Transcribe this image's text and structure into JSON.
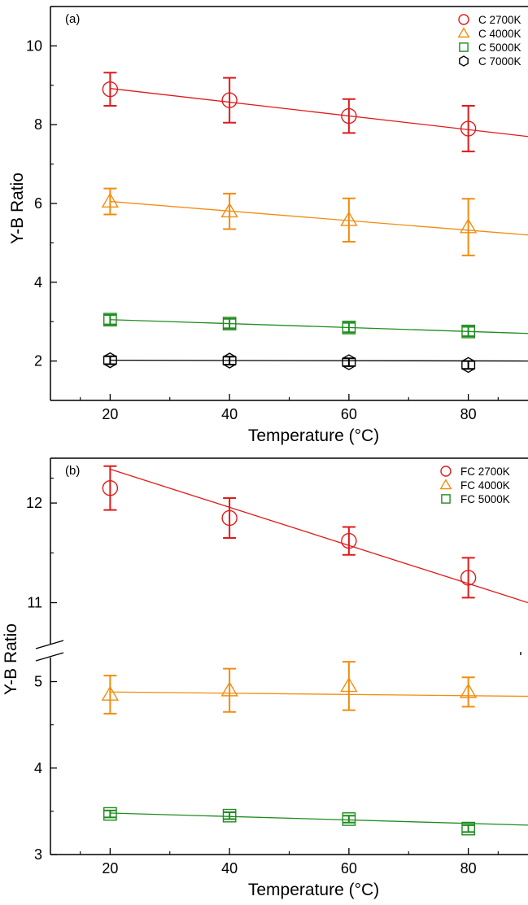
{
  "chart_data": [
    {
      "type": "scatter",
      "panel_label": "(a)",
      "xlabel": "Temperature (°C)",
      "ylabel": "Y-B Ratio",
      "xlim": [
        10,
        90
      ],
      "ylim": [
        1,
        11
      ],
      "xticks": [
        20,
        40,
        60,
        80
      ],
      "yticks": [
        2,
        4,
        6,
        8,
        10
      ],
      "grid": false,
      "legend_position": "top-right",
      "series": [
        {
          "name": "C 7000K",
          "marker": "hexagon",
          "color": "#000000",
          "x": [
            20,
            40,
            60,
            80
          ],
          "y": [
            2.02,
            2.01,
            1.97,
            1.9
          ],
          "err": [
            0.1,
            0.1,
            0.1,
            0.1
          ],
          "fit": {
            "x": [
              20,
              90
            ],
            "y": [
              2.02,
              2.0
            ]
          }
        },
        {
          "name": "C 5000K",
          "marker": "square",
          "color": "#1e8c1e",
          "x": [
            20,
            40,
            60,
            80
          ],
          "y": [
            3.05,
            2.95,
            2.85,
            2.75
          ],
          "err": [
            0.12,
            0.12,
            0.12,
            0.12
          ],
          "fit": {
            "x": [
              20,
              90
            ],
            "y": [
              3.05,
              2.7
            ]
          }
        },
        {
          "name": "C 4000K",
          "marker": "triangle",
          "color": "#f28c0f",
          "x": [
            20,
            40,
            60,
            80
          ],
          "y": [
            6.05,
            5.8,
            5.58,
            5.4
          ],
          "err": [
            0.33,
            0.45,
            0.55,
            0.72
          ],
          "fit": {
            "x": [
              20,
              90
            ],
            "y": [
              6.05,
              5.2
            ]
          }
        },
        {
          "name": "C 2700K",
          "marker": "circle",
          "color": "#e01a1a",
          "x": [
            20,
            40,
            60,
            80
          ],
          "y": [
            8.9,
            8.62,
            8.22,
            7.9
          ],
          "err": [
            0.42,
            0.57,
            0.43,
            0.58
          ],
          "fit": {
            "x": [
              20,
              90
            ],
            "y": [
              8.92,
              7.7
            ]
          }
        }
      ]
    },
    {
      "type": "scatter",
      "panel_label": "(b)",
      "xlabel": "Temperature (°C)",
      "ylabel": "Y-B Ratio",
      "xlim": [
        10,
        90
      ],
      "broken_axis": true,
      "ylim_lower": [
        3,
        5.4
      ],
      "ylim_upper": [
        10.8,
        12.45
      ],
      "xticks": [
        20,
        40,
        60,
        80
      ],
      "yticks_lower": [
        3,
        4,
        5
      ],
      "yticks_upper": [
        11,
        12
      ],
      "grid": false,
      "legend_position": "top-right",
      "series": [
        {
          "name": "FC 5000K",
          "marker": "square",
          "color": "#1e8c1e",
          "x": [
            20,
            40,
            60,
            80
          ],
          "y": [
            3.47,
            3.45,
            3.41,
            3.3
          ],
          "err": [
            0.04,
            0.04,
            0.04,
            0.04
          ],
          "fit": {
            "x": [
              20,
              90
            ],
            "y": [
              3.48,
              3.34
            ]
          }
        },
        {
          "name": "FC 4000K",
          "marker": "triangle",
          "color": "#f28c0f",
          "x": [
            20,
            40,
            60,
            80
          ],
          "y": [
            4.85,
            4.9,
            4.95,
            4.88
          ],
          "err": [
            0.22,
            0.25,
            0.28,
            0.17
          ],
          "fit": {
            "x": [
              20,
              90
            ],
            "y": [
              4.88,
              4.83
            ]
          }
        },
        {
          "name": "FC 2700K",
          "marker": "circle",
          "color": "#e01a1a",
          "x": [
            20,
            40,
            60,
            80
          ],
          "y": [
            12.15,
            11.85,
            11.62,
            11.25
          ],
          "err": [
            0.22,
            0.2,
            0.14,
            0.2
          ],
          "fit": {
            "x": [
              20,
              90
            ],
            "y": [
              12.34,
              11.0
            ]
          }
        }
      ]
    }
  ]
}
